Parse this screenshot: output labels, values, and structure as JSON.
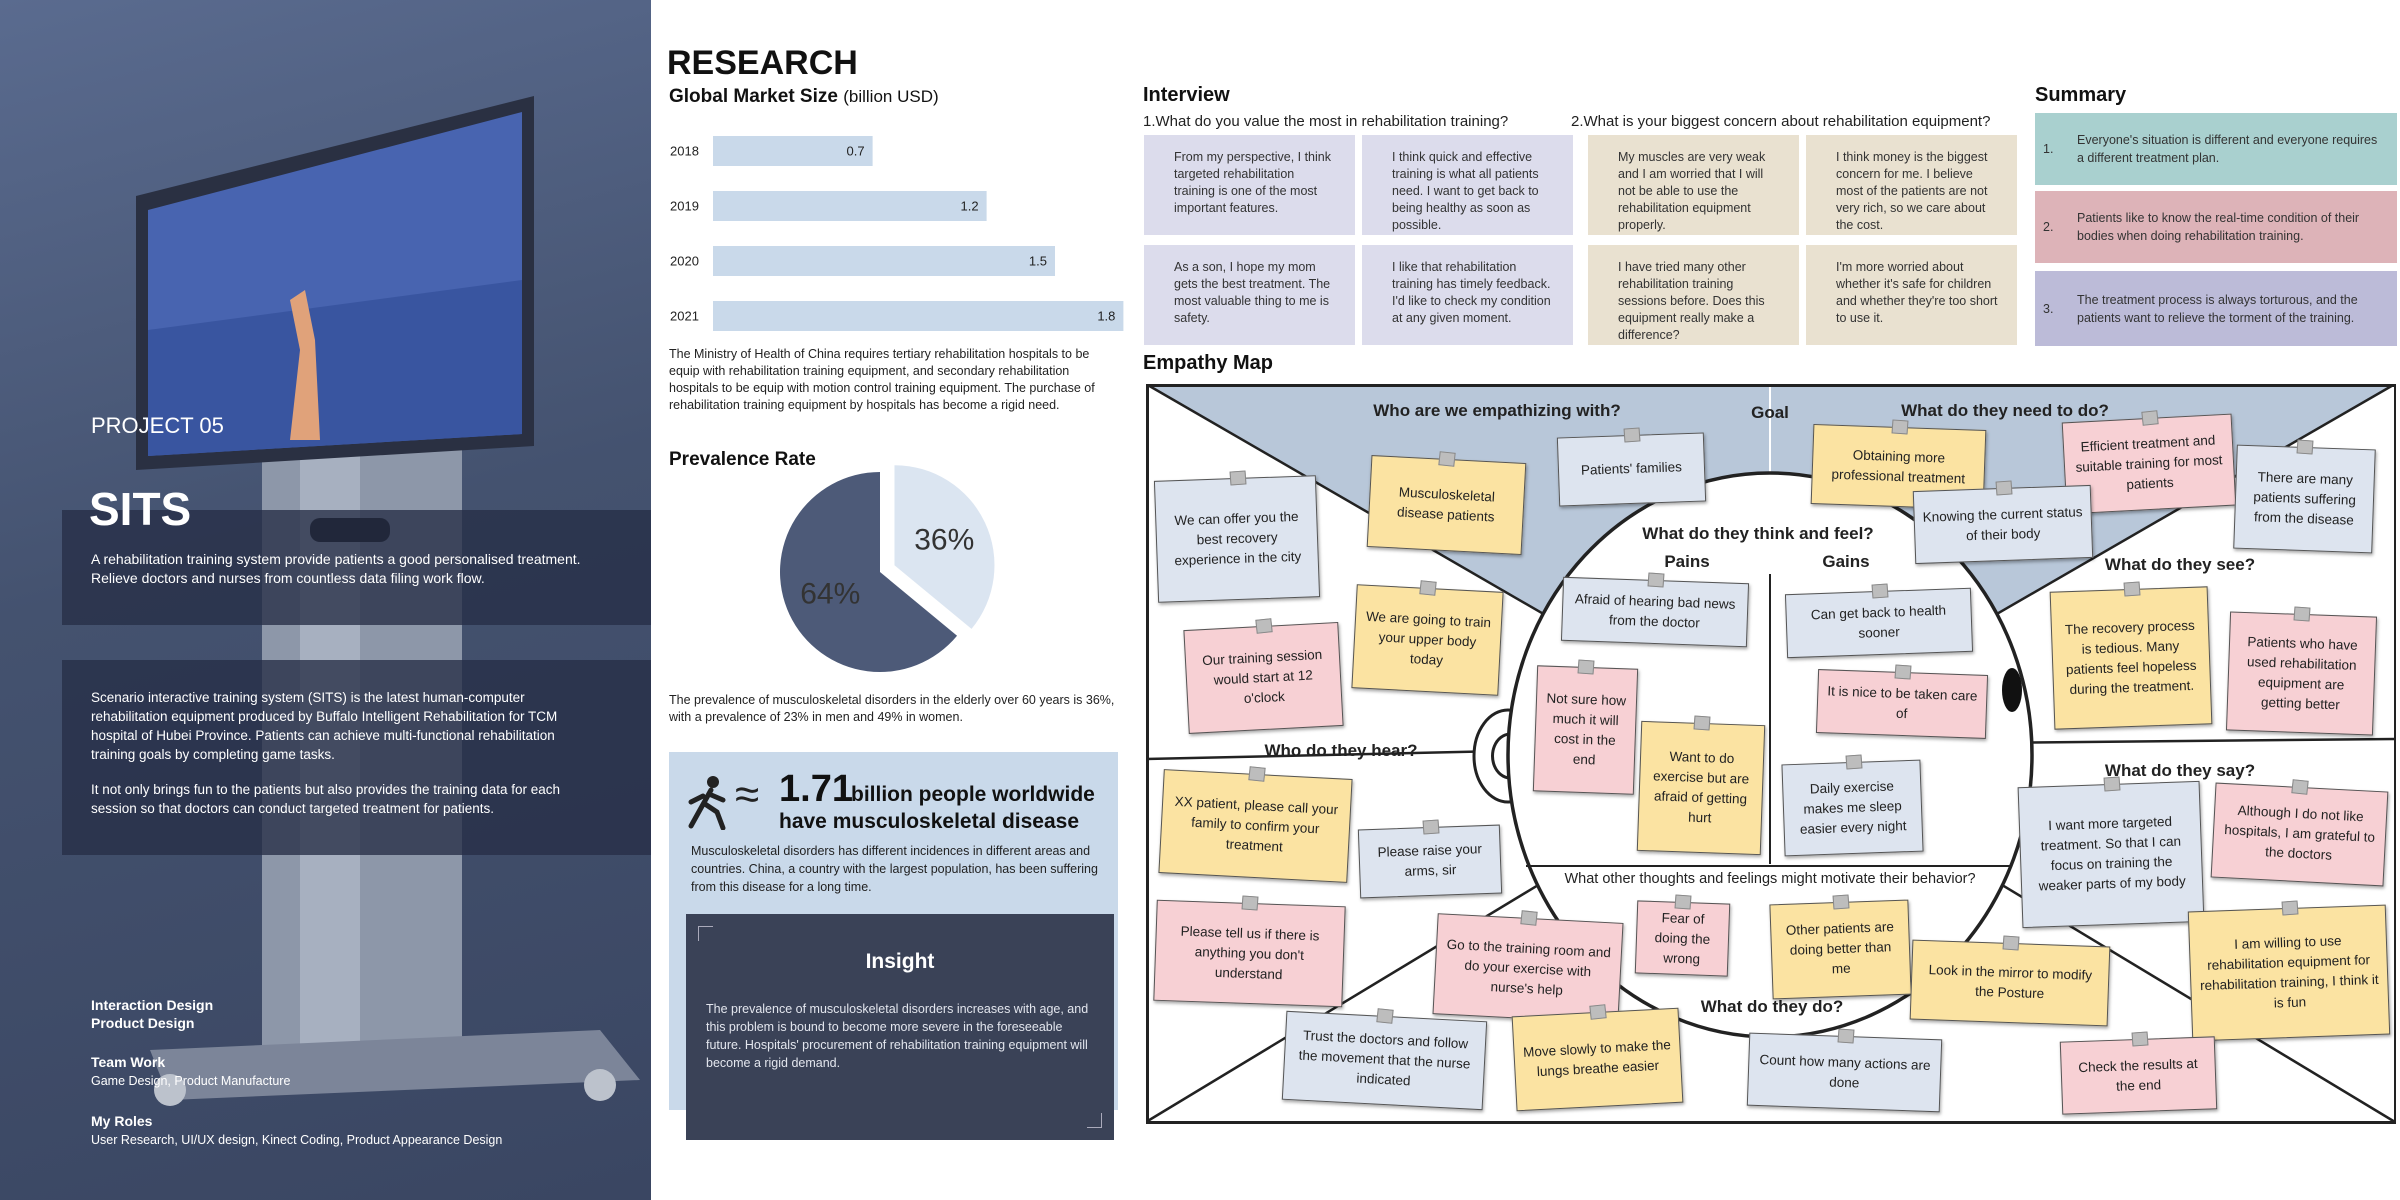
{
  "project": {
    "label": "PROJECT 05",
    "name": "SITS",
    "tagline": "A rehabilitation training system provide patients a good personalised treatment. Relieve doctors and nurses from countless data filing work flow.",
    "paragraphs": [
      "Scenario interactive training system (SITS) is the latest human-computer rehabilitation equipment produced by Buffalo Intelligent Rehabilitation for TCM hospital of Hubei Province. Patients can achieve multi-functional rehabilitation training goals by completing game tasks.",
      "It not only brings fun to the patients but also provides the training data for each session so that doctors can conduct targeted treatment for patients."
    ],
    "credits": [
      {
        "heading": "Interaction Design"
      },
      {
        "heading": "Product Design"
      },
      {
        "heading": "Team Work",
        "detail": "Game Design, Product Manufacture"
      },
      {
        "heading": "My Roles",
        "detail": "User Research, UI/UX design, Kinect Coding, Product Appearance Design"
      }
    ]
  },
  "research": {
    "title": "RESEARCH",
    "market_note": "The Ministry of Health of China requires tertiary rehabilitation hospitals to be equip with rehabilitation training equipment, and secondary rehabilitation hospitals to be equip with motion control training equipment. The purchase of rehabilitation training equipment by hospitals has become a rigid need.",
    "prevalence_note": "The prevalence of musculoskeletal disorders in the elderly over 60 years is 36%, with a prevalence of 23% in men and 49% in women.",
    "stat": {
      "approx": "≈",
      "number": 1.71,
      "line1": "billion people worldwide",
      "line2": "have musculoskeletal disease",
      "text": "Musculoskeletal disorders has different incidences in different areas and countries. China, a country with the largest population, has been suffering from this disease for a long time."
    },
    "insight": {
      "title": "Insight",
      "text": "The prevalence of musculoskeletal disorders increases with age, and this problem is bound to become more severe in the foreseeable future. Hospitals' procurement of rehabilitation training equipment will become a rigid demand."
    }
  },
  "chart_data": [
    {
      "type": "bar",
      "title": "Global Market Size",
      "subtitle": "(billion USD)",
      "categories": [
        "2018",
        "2019",
        "2020",
        "2021"
      ],
      "values": [
        0.7,
        1.2,
        1.5,
        1.8
      ],
      "color": "#c9d9ea"
    },
    {
      "type": "pie",
      "title": "Prevalence Rate",
      "values": [
        36,
        64
      ],
      "value_labels": [
        "36%",
        "64%"
      ],
      "colors": [
        "#dbe5f1",
        "#4d5a78"
      ]
    }
  ],
  "interview": {
    "title": "Interview",
    "questions": [
      {
        "question": "1.What do you value the most in rehabilitation training?",
        "color": "#dcdcec",
        "answers": [
          "From my perspective, I think targeted rehabilitation training is one of the most important features.",
          "I think quick and effective training is what all patients need. I want to get back to being healthy as soon as possible.",
          "As a son, I hope my mom gets the best treatment. The most valuable thing to me is safety.",
          "I like that rehabilitation training has timely feedback. I'd like to check my condition at any given moment."
        ]
      },
      {
        "question": "2.What is your biggest concern about rehabilitation equipment?",
        "color": "#e9e1d0",
        "answers": [
          "My muscles are very weak and I am worried that I will not be able to use the rehabilitation equipment properly.",
          "I think money is the biggest concern for me. I believe most of the patients are not very rich, so we care about the cost.",
          "I have tried many other rehabilitation training sessions before. Does this equipment really make a difference?",
          "I'm more worried about whether it's safe for children and whether they're too short to use it."
        ]
      }
    ]
  },
  "summary": {
    "title": "Summary",
    "items": [
      {
        "number": "1.",
        "text": "Everyone's situation is different and everyone requires a different treatment plan.",
        "color": "#a9d0cf"
      },
      {
        "number": "2.",
        "text": "Patients like to know the real-time condition of their bodies when doing rehabilitation training.",
        "color": "#ddb3b8"
      },
      {
        "number": "3.",
        "text": "The treatment process is always torturous, and the patients want to relieve the torment of the training.",
        "color": "#bcbbd8"
      }
    ]
  },
  "empathy_map": {
    "title": "Empathy Map",
    "headings": [
      "Who are we empathizing with?",
      "Goal",
      "What do they need to do?",
      "What do they think and feel?",
      "Pains",
      "Gains",
      "What do they see?",
      "Who do they hear?",
      "What do they say?",
      "What other thoughts and feelings might motivate their behavior?",
      "What do they do?"
    ],
    "notes": [
      {
        "text": "We can offer you the best recovery experience in the city",
        "color": "#dde4ef"
      },
      {
        "text": "Musculoskeletal disease patients",
        "color": "#fbe3a2"
      },
      {
        "text": "Patients' families",
        "color": "#dde4ef"
      },
      {
        "text": "Obtaining more professional treatment",
        "color": "#fbe3a2"
      },
      {
        "text": "Efficient treatment and suitable training for most patients",
        "color": "#f7d0d4"
      },
      {
        "text": "There are many patients suffering from the disease",
        "color": "#dde4ef"
      },
      {
        "text": "Knowing the current status of their body",
        "color": "#dde4ef"
      },
      {
        "text": "We are going to train your upper body today",
        "color": "#fbe3a2"
      },
      {
        "text": "Our training session would start at 12 o'clock",
        "color": "#f7d0d4"
      },
      {
        "text": "Afraid of hearing bad news from the doctor",
        "color": "#dde4ef"
      },
      {
        "text": "Can get back to health sooner",
        "color": "#dde4ef"
      },
      {
        "text": "Not sure how much it will cost in the end",
        "color": "#f7d0d4"
      },
      {
        "text": "It is nice to be taken care of",
        "color": "#f7d0d4"
      },
      {
        "text": "The recovery process is tedious. Many patients feel hopeless during the treatment.",
        "color": "#fbe3a2"
      },
      {
        "text": "Patients who have used rehabilitation equipment are getting better",
        "color": "#f7d0d4"
      },
      {
        "text": "Want to do exercise but are afraid of getting hurt",
        "color": "#fbe3a2"
      },
      {
        "text": "Daily exercise makes me sleep easier every night",
        "color": "#dde4ef"
      },
      {
        "text": "XX patient, please call your family to confirm your treatment",
        "color": "#fbe3a2"
      },
      {
        "text": "Please raise your arms, sir",
        "color": "#dde4ef"
      },
      {
        "text": "I want more targeted treatment. So that I can focus on training the weaker parts of my body",
        "color": "#dde4ef"
      },
      {
        "text": "Although I do not like hospitals, I am grateful to the doctors",
        "color": "#f7d0d4"
      },
      {
        "text": "Please tell us if there is anything you don't understand",
        "color": "#f7d0d4"
      },
      {
        "text": "Go to the training room and do your exercise with nurse's help",
        "color": "#f7d0d4"
      },
      {
        "text": "Fear of doing the wrong",
        "color": "#f7d0d4"
      },
      {
        "text": "Other patients are doing better than me",
        "color": "#fbe3a2"
      },
      {
        "text": "Look in the mirror to modify the Posture",
        "color": "#fbe3a2"
      },
      {
        "text": "I am willing to use rehabilitation equipment for rehabilitation training, I think it is fun",
        "color": "#fbe3a2"
      },
      {
        "text": "Trust the doctors and follow the movement that the nurse indicated",
        "color": "#dde4ef"
      },
      {
        "text": "Move slowly to make the lungs breathe easier",
        "color": "#fbe3a2"
      },
      {
        "text": "Count how many actions are done",
        "color": "#dde4ef"
      },
      {
        "text": "Check the results at the end",
        "color": "#f7d0d4"
      }
    ]
  }
}
